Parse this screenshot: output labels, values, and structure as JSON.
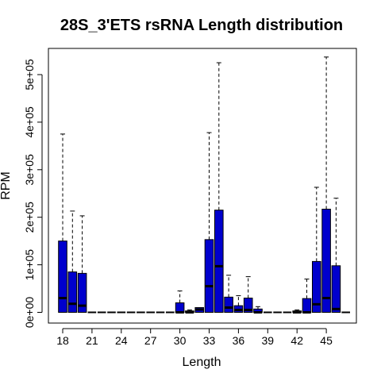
{
  "chart_data": {
    "type": "boxplot-bar",
    "title": "28S_3'ETS rsRNA Length distribution",
    "xlabel": "Length",
    "ylabel": "RPM",
    "ylim": [
      0,
      550000
    ],
    "yticks": [
      0,
      100000,
      200000,
      300000,
      400000,
      500000
    ],
    "ytick_labels": [
      "0e+00",
      "1e+05",
      "2e+05",
      "3e+05",
      "4e+05",
      "5e+05"
    ],
    "xticks": [
      18,
      21,
      24,
      27,
      30,
      33,
      36,
      39,
      42,
      45
    ],
    "xtick_labels": [
      "18",
      "21",
      "24",
      "27",
      "30",
      "33",
      "36",
      "39",
      "42",
      "45"
    ],
    "bar_color": "#0000CD",
    "lengths": [
      18,
      19,
      20,
      21,
      22,
      23,
      24,
      25,
      26,
      27,
      28,
      29,
      30,
      31,
      32,
      33,
      34,
      35,
      36,
      37,
      38,
      39,
      40,
      41,
      42,
      43,
      44,
      45,
      46,
      47
    ],
    "values": [
      150000,
      85000,
      82000,
      0,
      0,
      0,
      0,
      0,
      0,
      0,
      0,
      0,
      20000,
      3000,
      10000,
      153000,
      215000,
      32000,
      14000,
      30000,
      7000,
      0,
      0,
      0,
      3000,
      29000,
      107000,
      217000,
      98000,
      0
    ],
    "medians": [
      30000,
      18000,
      14000,
      0,
      0,
      0,
      0,
      0,
      0,
      0,
      0,
      0,
      0,
      0,
      6000,
      55000,
      97000,
      10000,
      5000,
      5000,
      0,
      0,
      0,
      0,
      0,
      0,
      17000,
      30000,
      7000,
      0
    ],
    "upper_whiskers": [
      375000,
      213000,
      203000,
      0,
      0,
      0,
      0,
      0,
      0,
      0,
      0,
      0,
      45000,
      5000,
      0,
      378000,
      525000,
      78000,
      35000,
      75000,
      12000,
      0,
      0,
      0,
      5000,
      70000,
      263000,
      537000,
      240000,
      0
    ]
  }
}
